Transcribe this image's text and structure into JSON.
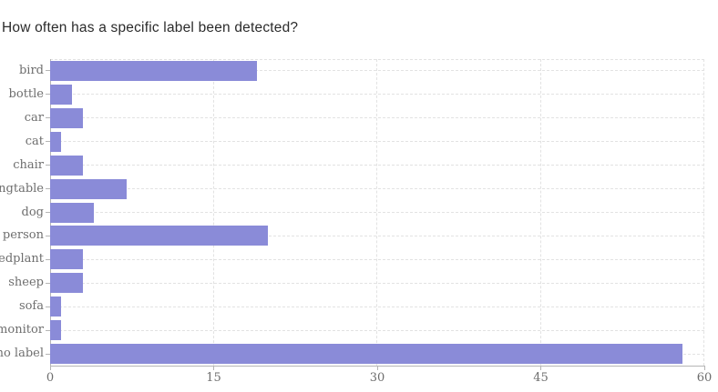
{
  "chart_data": {
    "type": "bar",
    "orientation": "horizontal",
    "title": "How often has a specific label been detected?",
    "categories": [
      "bird",
      "bottle",
      "car",
      "cat",
      "chair",
      "diningtable",
      "dog",
      "person",
      "pottedplant",
      "sheep",
      "sofa",
      "tvmonitor",
      "no label"
    ],
    "values": [
      19,
      2,
      3,
      1,
      3,
      7,
      4,
      20,
      3,
      3,
      1,
      1,
      58
    ],
    "xlabel": "",
    "ylabel": "",
    "xlim": [
      0,
      60
    ],
    "x_ticks": [
      0,
      15,
      30,
      45,
      60
    ],
    "grid": "dashed light-gray horizontal lines at each category midline and vertical lines at x ticks",
    "legend": "none",
    "colors": {
      "bar": "#8a8bd8",
      "axis": "#b5b5b5",
      "grid": "#e2e2e2",
      "tick_label": "#6e6e6e",
      "title": "#2b2b2b",
      "background": "#ffffff"
    }
  }
}
